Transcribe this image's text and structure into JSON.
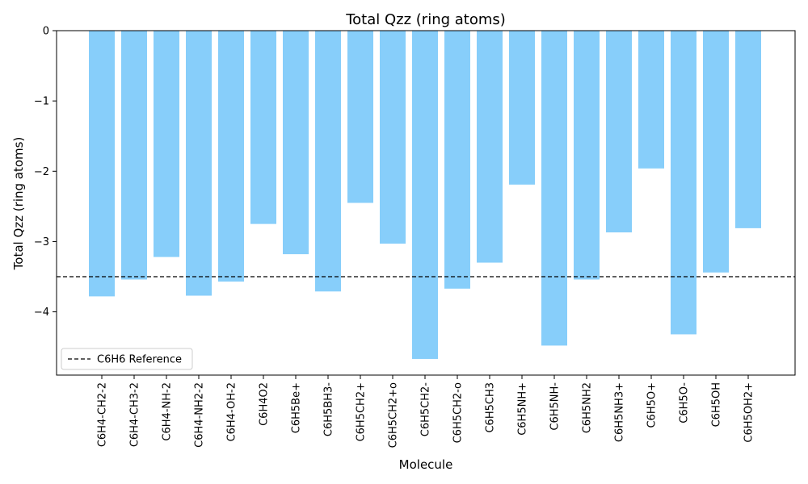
{
  "chart_data": {
    "type": "bar",
    "title": "Total Qzz (ring atoms)",
    "xlabel": "Molecule",
    "ylabel": "Total Qzz (ring atoms)",
    "ylim": [
      -4.9,
      0
    ],
    "yticks": [
      0,
      -1,
      -2,
      -3,
      -4
    ],
    "ytick_labels": [
      "0",
      "−1",
      "−2",
      "−3",
      "−4"
    ],
    "categories": [
      "C6H4-CH2-2",
      "C6H4-CH3-2",
      "C6H4-NH-2",
      "C6H4-NH2-2",
      "C6H4-OH-2",
      "C6H4O2",
      "C6H5Be+",
      "C6H5BH3-",
      "C6H5CH2+",
      "C6H5CH2+o",
      "C6H5CH2-",
      "C6H5CH2-o",
      "C6H5CH3",
      "C6H5NH+",
      "C6H5NH-",
      "C6H5NH2",
      "C6H5NH3+",
      "C6H5O+",
      "C6H5O-",
      "C6H5OH",
      "C6H5OH2+"
    ],
    "values": [
      -3.78,
      -3.54,
      -3.22,
      -3.77,
      -3.57,
      -2.75,
      -3.18,
      -3.71,
      -2.45,
      -3.03,
      -4.67,
      -3.67,
      -3.3,
      -2.19,
      -4.48,
      -3.54,
      -2.87,
      -1.96,
      -4.32,
      -3.44,
      -2.81
    ],
    "bar_color": "#87CEFA",
    "grid": false,
    "reference": {
      "label": "C6H6 Reference",
      "value": -3.5,
      "color": "#000000",
      "style": "dashed"
    },
    "legend_position": "lower-left"
  }
}
